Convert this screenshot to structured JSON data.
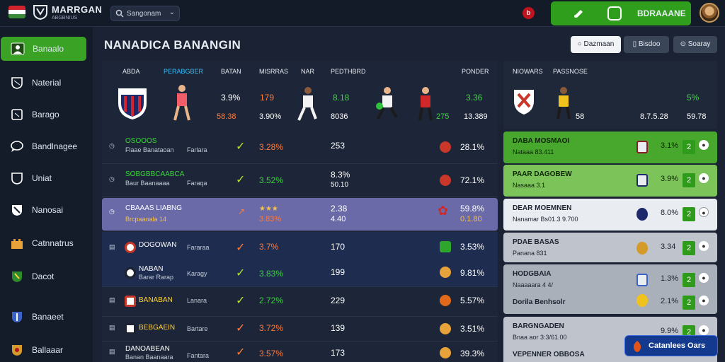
{
  "topbar": {
    "brand": "MARRGAN",
    "brand_sub": "ABGBNIUS",
    "search_value": "Sangonam",
    "alert_count": "b",
    "cta_label": "BDRAAANE",
    "colors": {
      "cta": "#2f9e1c",
      "alert": "#c0141f"
    }
  },
  "sidebar": {
    "items": [
      {
        "label": "Banaalo",
        "icon": "user-card-icon"
      },
      {
        "label": "Naterial",
        "icon": "shield-outline-icon"
      },
      {
        "label": "Barago",
        "icon": "cube-icon"
      },
      {
        "label": "Bandlnagee",
        "icon": "speech-bubble-icon"
      },
      {
        "label": "Uniat",
        "icon": "shield-icon"
      },
      {
        "label": "Nanosai",
        "icon": "shield-ribbon-icon"
      },
      {
        "label": "Catnnatrus",
        "icon": "castle-icon"
      },
      {
        "label": "Dacot",
        "icon": "green-crest-icon"
      },
      {
        "label": "Banaeet",
        "icon": "blue-crest-icon"
      },
      {
        "label": "Ballaaar",
        "icon": "gold-crest-icon"
      }
    ],
    "active_index": 0
  },
  "header": {
    "title": "NANADICA BANANGIN",
    "buttons": [
      "Dazmaan",
      "Bisdoo",
      "Soaray"
    ]
  },
  "table": {
    "columns": [
      "ABDA",
      "PERABGBER",
      "BATAN",
      "MISRRAS",
      "NAR",
      "PEDTHBRD",
      "PONDER"
    ],
    "hero": {
      "v1": "3.9%",
      "v1b": "58.38",
      "v2": "179",
      "v2b": "3.90%",
      "v3": "8.18",
      "v3b": "8036",
      "v4": "275",
      "v5": "3.36",
      "v5b": "13.389"
    },
    "rows": [
      {
        "name": "OSOOOS",
        "sub": "Flaae Banataoan",
        "who": "Farlara",
        "pct": "3.28%",
        "num": "253",
        "num2": "",
        "end": "28.1%",
        "name_color": "#3bd43b",
        "pct_color": "#ff7a3a"
      },
      {
        "name": "SOBGBBCAABCA",
        "sub": "Baur Baanaaaa",
        "who": "Faraqa",
        "pct": "3.52%",
        "num": "8.3%",
        "num2": "50.10",
        "end": "72.1%",
        "name_color": "#3bd43b",
        "pct_color": "#3bd43b"
      },
      {
        "name": "CBAAAS LIABNG",
        "sub": "Brcpaaoala 14",
        "who": "",
        "pct": "3.83%",
        "num": "2.38",
        "num2": "4.40",
        "end": "59.8%",
        "end2": "0.1.80",
        "name_color": "#ffffff",
        "pct_color": "#ff7a3a"
      },
      {
        "name": "DOGOWAN",
        "sub": "",
        "who": "Fararaa",
        "pct": "3.7%",
        "num": "170",
        "num2": "",
        "end": "3.53%",
        "name_color": "#ffffff",
        "pct_color": "#ff7a3a"
      },
      {
        "name": "NABAN",
        "sub": "Barar Rarap",
        "who": "Karagy",
        "pct": "3.83%",
        "num": "199",
        "num2": "",
        "end": "9.81%",
        "name_color": "#ffffff",
        "pct_color": "#3bd43b"
      },
      {
        "name": "BANABAN",
        "sub": "",
        "who": "Lanara",
        "pct": "2.72%",
        "num": "229",
        "num2": "",
        "end": "5.57%",
        "name_color": "#ffd23a",
        "pct_color": "#3bd43b"
      },
      {
        "name": "BEBGAEIN",
        "sub": "",
        "who": "Bartare",
        "pct": "3.72%",
        "num": "139",
        "num2": "",
        "end": "3.51%",
        "name_color": "#ffd23a",
        "pct_color": "#ff7a3a"
      },
      {
        "name": "DANOABEAN",
        "sub": "Banan Baanaara",
        "who": "Fantara",
        "pct": "3.57%",
        "num": "173",
        "num2": "",
        "end": "39.3%",
        "name_color": "#ffffff",
        "pct_color": "#ff7a3a"
      }
    ]
  },
  "right": {
    "header": [
      "NIOWARS",
      "PASSNOSE"
    ],
    "hero": {
      "pct": "5%",
      "a": "8.7.5.28",
      "b": "59.78",
      "c": "58"
    },
    "rows": [
      {
        "t1": "DABA MOSMAOI",
        "t2": "Nataaa 83.411",
        "pct": "3.1%",
        "box": "2",
        "bg": "#47a82d",
        "fg": "#10240a"
      },
      {
        "t1": "PAAR DAGOBEW",
        "t2": "Nasaaa 3.1",
        "pct": "3.9%",
        "box": "2",
        "bg": "#7cc45a",
        "fg": "#10240a"
      },
      {
        "t1": "DEAR MOEMNEN",
        "t2": "Nanamar Bs01.3 9.700",
        "pct": "8.0%",
        "box": "2",
        "bg": "#e9ecf0",
        "fg": "#1d2330"
      },
      {
        "t1": "PDAE BASAS",
        "t2": "Panana 831",
        "pct": "3.34",
        "box": "2",
        "bg": "#bfc4cc",
        "fg": "#1d2330"
      },
      {
        "t1": "HODGBAIA",
        "t2": "Naaaaara 4 4/",
        "pct": "1.3%",
        "box": "2",
        "bg": "#aab0b9",
        "fg": "#1d2330"
      },
      {
        "t1": "Dorila Benhsolr",
        "t2": "",
        "pct": "2.1%",
        "box": "2",
        "bg": "#d0d4da",
        "fg": "#1d2330"
      },
      {
        "t1": "BARGNGADEN",
        "t2": "Bnaa aor 3:3/61.00",
        "pct": "9.9%",
        "box": "2",
        "bg": "#bfc4cc",
        "fg": "#1d2330"
      },
      {
        "t1": "VEPENNER OBBOSA",
        "t2": "",
        "pct": "",
        "box": "",
        "bg": "#aab0b9",
        "fg": "#1d2330"
      }
    ]
  },
  "floating_cta": {
    "label": "Catanlees Oars"
  }
}
